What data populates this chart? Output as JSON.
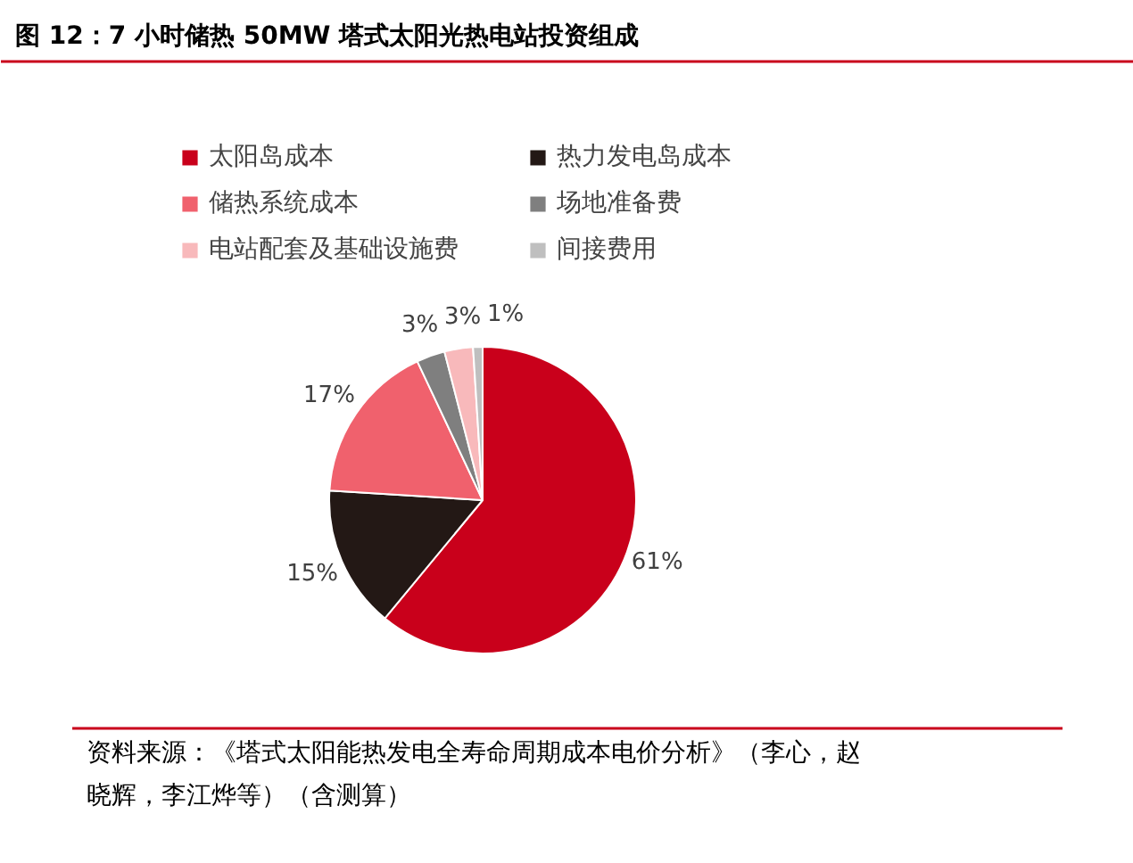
{
  "chart_data": {
    "type": "pie",
    "title": "图 12：7 小时储热 50MW 塔式太阳光热电站投资组成",
    "categories": [
      "太阳岛成本",
      "热力发电岛成本",
      "储热系统成本",
      "场地准备费",
      "电站配套及基础设施费",
      "间接费用"
    ],
    "values": [
      61,
      15,
      17,
      3,
      3,
      1
    ],
    "colors": [
      "#c9001b",
      "#231815",
      "#f0616d",
      "#7f7f7f",
      "#f8b9bb",
      "#bfbfbf"
    ],
    "value_labels": [
      "61%",
      "15%",
      "17%",
      "3%",
      "3%",
      "1%"
    ],
    "legend": "top",
    "annotations": [
      "资料来源：《塔式太阳能热发电全寿命周期成本电价分析》（李心，赵晓辉，李江烨等）（含测算）"
    ]
  }
}
